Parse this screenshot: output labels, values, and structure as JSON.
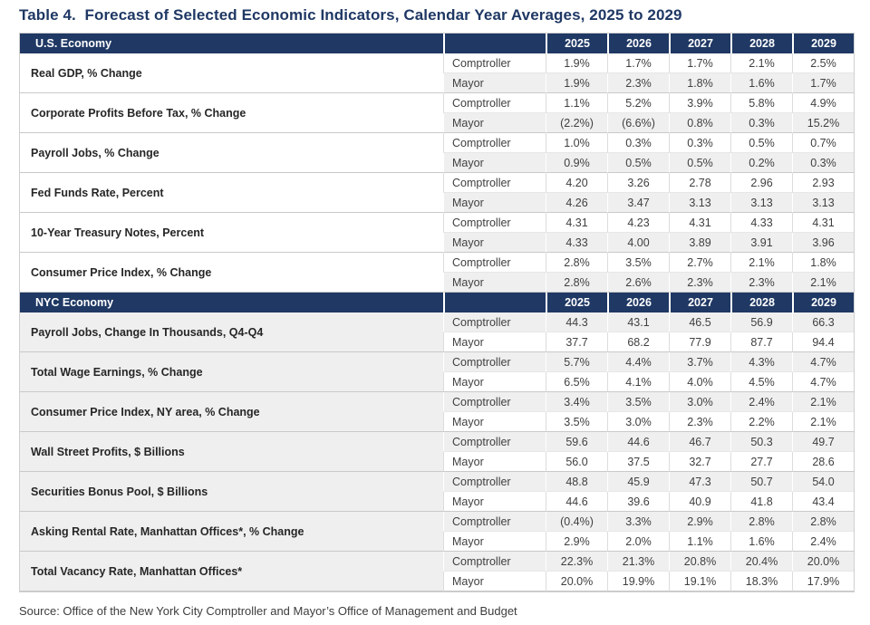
{
  "title": "Table 4.  Forecast of Selected Economic Indicators, Calendar Year Averages, 2025 to 2029",
  "source": "Source: Office of the New York City Comptroller and Mayor’s Office of Management and Budget",
  "years": [
    "2025",
    "2026",
    "2027",
    "2028",
    "2029"
  ],
  "row_labels": {
    "comptroller": "Comptroller",
    "mayor": "Mayor"
  },
  "colors": {
    "header_bg": "#1F3864",
    "header_text": "#FFFFFF",
    "title_text": "#1F3864",
    "stripe_gray": "#EFEFEF",
    "value_text": "#404040"
  },
  "sections": [
    {
      "name": "U.S. Economy",
      "label_cell_shaded": false,
      "comptroller_row_shaded": false,
      "mayor_row_shaded": true,
      "rows": [
        {
          "indicator": "Real GDP, % Change",
          "comptroller": [
            "1.9%",
            "1.7%",
            "1.7%",
            "2.1%",
            "2.5%"
          ],
          "mayor": [
            "1.9%",
            "2.3%",
            "1.8%",
            "1.6%",
            "1.7%"
          ]
        },
        {
          "indicator": "Corporate Profits Before Tax, % Change",
          "comptroller": [
            "1.1%",
            "5.2%",
            "3.9%",
            "5.8%",
            "4.9%"
          ],
          "mayor": [
            "(2.2%)",
            "(6.6%)",
            "0.8%",
            "0.3%",
            "15.2%"
          ]
        },
        {
          "indicator": "Payroll Jobs, % Change",
          "comptroller": [
            "1.0%",
            "0.3%",
            "0.3%",
            "0.5%",
            "0.7%"
          ],
          "mayor": [
            "0.9%",
            "0.5%",
            "0.5%",
            "0.2%",
            "0.3%"
          ]
        },
        {
          "indicator": "Fed Funds Rate, Percent",
          "comptroller": [
            "4.20",
            "3.26",
            "2.78",
            "2.96",
            "2.93"
          ],
          "mayor": [
            "4.26",
            "3.47",
            "3.13",
            "3.13",
            "3.13"
          ]
        },
        {
          "indicator": "10-Year Treasury Notes, Percent",
          "comptroller": [
            "4.31",
            "4.23",
            "4.31",
            "4.33",
            "4.31"
          ],
          "mayor": [
            "4.33",
            "4.00",
            "3.89",
            "3.91",
            "3.96"
          ]
        },
        {
          "indicator": "Consumer Price Index, % Change",
          "comptroller": [
            "2.8%",
            "3.5%",
            "2.7%",
            "2.1%",
            "1.8%"
          ],
          "mayor": [
            "2.8%",
            "2.6%",
            "2.3%",
            "2.3%",
            "2.1%"
          ]
        }
      ]
    },
    {
      "name": "NYC Economy",
      "label_cell_shaded": true,
      "comptroller_row_shaded": true,
      "mayor_row_shaded": false,
      "rows": [
        {
          "indicator": "Payroll Jobs, Change In Thousands, Q4-Q4",
          "comptroller": [
            "44.3",
            "43.1",
            "46.5",
            "56.9",
            "66.3"
          ],
          "mayor": [
            "37.7",
            "68.2",
            "77.9",
            "87.7",
            "94.4"
          ]
        },
        {
          "indicator": "Total Wage Earnings, % Change",
          "comptroller": [
            "5.7%",
            "4.4%",
            "3.7%",
            "4.3%",
            "4.7%"
          ],
          "mayor": [
            "6.5%",
            "4.1%",
            "4.0%",
            "4.5%",
            "4.7%"
          ]
        },
        {
          "indicator": "Consumer Price Index, NY area, % Change",
          "comptroller": [
            "3.4%",
            "3.5%",
            "3.0%",
            "2.4%",
            "2.1%"
          ],
          "mayor": [
            "3.5%",
            "3.0%",
            "2.3%",
            "2.2%",
            "2.1%"
          ]
        },
        {
          "indicator": "Wall Street Profits, $ Billions",
          "comptroller": [
            "59.6",
            "44.6",
            "46.7",
            "50.3",
            "49.7"
          ],
          "mayor": [
            "56.0",
            "37.5",
            "32.7",
            "27.7",
            "28.6"
          ]
        },
        {
          "indicator": "Securities Bonus Pool, $ Billions",
          "comptroller": [
            "48.8",
            "45.9",
            "47.3",
            "50.7",
            "54.0"
          ],
          "mayor": [
            "44.6",
            "39.6",
            "40.9",
            "41.8",
            "43.4"
          ]
        },
        {
          "indicator": "Asking Rental Rate, Manhattan Offices*, % Change",
          "comptroller": [
            "(0.4%)",
            "3.3%",
            "2.9%",
            "2.8%",
            "2.8%"
          ],
          "mayor": [
            "2.9%",
            "2.0%",
            "1.1%",
            "1.6%",
            "2.4%"
          ]
        },
        {
          "indicator": "Total Vacancy Rate, Manhattan Offices*",
          "comptroller": [
            "22.3%",
            "21.3%",
            "20.8%",
            "20.4%",
            "20.0%"
          ],
          "mayor": [
            "20.0%",
            "19.9%",
            "19.1%",
            "18.3%",
            "17.9%"
          ]
        }
      ]
    }
  ]
}
